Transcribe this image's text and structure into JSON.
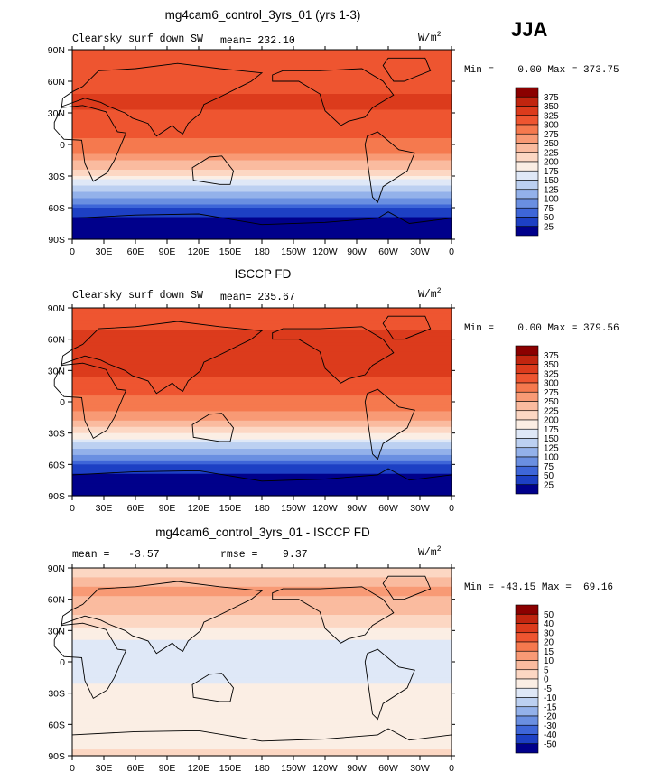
{
  "season": "JJA",
  "chart_data": [
    {
      "type": "heatmap",
      "title": "mg4cam6_control_3yrs_01 (yrs 1-3)",
      "left_label": "Clearsky surf down SW",
      "center_label": "mean= 232.10",
      "units": "W/m",
      "units_power": "2",
      "min_max": "Min =    0.00 Max = 373.75",
      "x_ticks": [
        "0",
        "30E",
        "60E",
        "90E",
        "120E",
        "150E",
        "180",
        "150W",
        "120W",
        "90W",
        "60W",
        "30W",
        "0"
      ],
      "y_ticks": [
        "90N",
        "60N",
        "30N",
        "0",
        "30S",
        "60S",
        "90S"
      ],
      "xlim": [
        0,
        360
      ],
      "ylim": [
        -90,
        90
      ],
      "colorbar_levels": [
        "375",
        "350",
        "325",
        "300",
        "275",
        "250",
        "225",
        "200",
        "175",
        "150",
        "125",
        "100",
        "75",
        "50",
        "25"
      ],
      "colorbar_colors": [
        "#8b0000",
        "#c1250f",
        "#dc3b1c",
        "#ee5530",
        "#f5794e",
        "#f89a75",
        "#fabb9f",
        "#fcd7c3",
        "#fbeee4",
        "#dfe8f7",
        "#bcd0f1",
        "#93b1ea",
        "#6a8fe1",
        "#3e66d8",
        "#1d40c4",
        "#00008b"
      ],
      "zonal_profile": [
        {
          "lat": 85,
          "value": 300
        },
        {
          "lat": 70,
          "value": 320
        },
        {
          "lat": 55,
          "value": 320
        },
        {
          "lat": 40,
          "value": 330
        },
        {
          "lat": 25,
          "value": 320
        },
        {
          "lat": 10,
          "value": 305
        },
        {
          "lat": 0,
          "value": 290
        },
        {
          "lat": -10,
          "value": 270
        },
        {
          "lat": -20,
          "value": 235
        },
        {
          "lat": -30,
          "value": 195
        },
        {
          "lat": -40,
          "value": 150
        },
        {
          "lat": -50,
          "value": 105
        },
        {
          "lat": -60,
          "value": 55
        },
        {
          "lat": -70,
          "value": 15
        },
        {
          "lat": -85,
          "value": 0
        }
      ]
    },
    {
      "type": "heatmap",
      "title": "ISCCP FD",
      "left_label": "Clearsky surf down SW",
      "center_label": "mean= 235.67",
      "units": "W/m",
      "units_power": "2",
      "min_max": "Min =    0.00 Max = 379.56",
      "x_ticks": [
        "0",
        "30E",
        "60E",
        "90E",
        "120E",
        "150E",
        "180",
        "150W",
        "120W",
        "90W",
        "60W",
        "30W",
        "0"
      ],
      "y_ticks": [
        "90N",
        "60N",
        "30N",
        "0",
        "30S",
        "60S",
        "90S"
      ],
      "xlim": [
        0,
        360
      ],
      "ylim": [
        -90,
        90
      ],
      "colorbar_levels": [
        "375",
        "350",
        "325",
        "300",
        "275",
        "250",
        "225",
        "200",
        "175",
        "150",
        "125",
        "100",
        "75",
        "50",
        "25"
      ],
      "colorbar_colors": [
        "#8b0000",
        "#c1250f",
        "#dc3b1c",
        "#ee5530",
        "#f5794e",
        "#f89a75",
        "#fabb9f",
        "#fcd7c3",
        "#fbeee4",
        "#dfe8f7",
        "#bcd0f1",
        "#93b1ea",
        "#6a8fe1",
        "#3e66d8",
        "#1d40c4",
        "#00008b"
      ],
      "zonal_profile": [
        {
          "lat": 85,
          "value": 310
        },
        {
          "lat": 70,
          "value": 325
        },
        {
          "lat": 55,
          "value": 325
        },
        {
          "lat": 40,
          "value": 335
        },
        {
          "lat": 25,
          "value": 325
        },
        {
          "lat": 10,
          "value": 305
        },
        {
          "lat": 0,
          "value": 290
        },
        {
          "lat": -10,
          "value": 270
        },
        {
          "lat": -20,
          "value": 240
        },
        {
          "lat": -30,
          "value": 200
        },
        {
          "lat": -40,
          "value": 150
        },
        {
          "lat": -50,
          "value": 105
        },
        {
          "lat": -60,
          "value": 55
        },
        {
          "lat": -70,
          "value": 15
        },
        {
          "lat": -85,
          "value": 0
        }
      ]
    },
    {
      "type": "heatmap",
      "title": "mg4cam6_control_3yrs_01 - ISCCP FD",
      "left_label": "mean =   -3.57",
      "center_label": "rmse =    9.37",
      "units": "W/m",
      "units_power": "2",
      "min_max": "Min = -43.15 Max =  69.16",
      "x_ticks": [
        "0",
        "30E",
        "60E",
        "90E",
        "120E",
        "150E",
        "180",
        "150W",
        "120W",
        "90W",
        "60W",
        "30W",
        "0"
      ],
      "y_ticks": [
        "90N",
        "60N",
        "30N",
        "0",
        "30S",
        "60S",
        "90S"
      ],
      "xlim": [
        0,
        360
      ],
      "ylim": [
        -90,
        90
      ],
      "colorbar_levels": [
        "50",
        "40",
        "30",
        "20",
        "15",
        "10",
        "5",
        "0",
        "-5",
        "-10",
        "-15",
        "-20",
        "-30",
        "-40",
        "-50"
      ],
      "colorbar_colors": [
        "#8b0000",
        "#c1250f",
        "#dc3b1c",
        "#ee5530",
        "#f5794e",
        "#f89a75",
        "#fabb9f",
        "#fcd7c3",
        "#fbeee4",
        "#dfe8f7",
        "#bcd0f1",
        "#93b1ea",
        "#6a8fe1",
        "#3e66d8",
        "#1d40c4",
        "#00008b"
      ],
      "zonal_profile": [
        {
          "lat": 85,
          "value": 2
        },
        {
          "lat": 70,
          "value": 12
        },
        {
          "lat": 55,
          "value": 8
        },
        {
          "lat": 40,
          "value": 3
        },
        {
          "lat": 25,
          "value": -4
        },
        {
          "lat": 10,
          "value": -8
        },
        {
          "lat": 0,
          "value": -9
        },
        {
          "lat": -10,
          "value": -7
        },
        {
          "lat": -20,
          "value": -5
        },
        {
          "lat": -30,
          "value": -3
        },
        {
          "lat": -40,
          "value": -2
        },
        {
          "lat": -50,
          "value": -2
        },
        {
          "lat": -60,
          "value": -2
        },
        {
          "lat": -70,
          "value": -2
        },
        {
          "lat": -85,
          "value": 0
        }
      ]
    }
  ]
}
